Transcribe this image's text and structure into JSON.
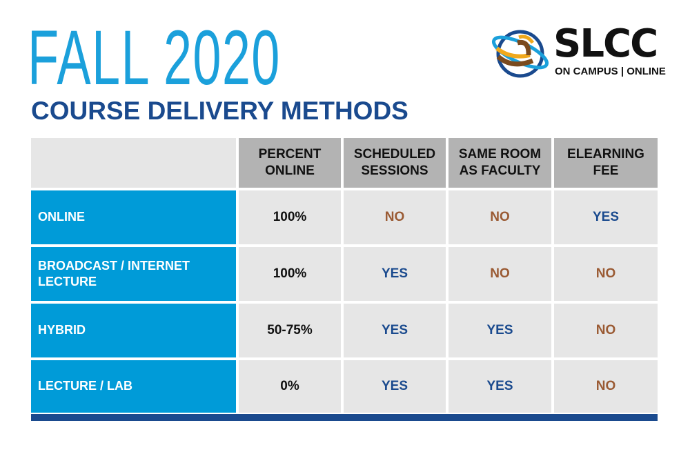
{
  "title": "FALL 2020",
  "subtitle": "COURSE DELIVERY METHODS",
  "logo": {
    "word": "SLCC",
    "tagline": "ON CAMPUS | ONLINE"
  },
  "colors": {
    "title": "#1ba0db",
    "subtitle": "#1a4a8e",
    "row_label_bg": "#009bd8",
    "yes": "#1a4a8e",
    "no": "#9a5a33",
    "header_bg": "#b3b3b3",
    "cell_bg": "#e6e6e6"
  },
  "table": {
    "headers": [
      "PERCENT ONLINE",
      "SCHEDULED SESSIONS",
      "SAME ROOM AS FACULTY",
      "ELEARNING FEE"
    ],
    "rows": [
      {
        "label": "ONLINE",
        "cells": [
          "100%",
          "NO",
          "NO",
          "YES"
        ]
      },
      {
        "label": "BROADCAST / INTERNET LECTURE",
        "cells": [
          "100%",
          "YES",
          "NO",
          "NO"
        ]
      },
      {
        "label": "HYBRID",
        "cells": [
          "50-75%",
          "YES",
          "YES",
          "NO"
        ]
      },
      {
        "label": "LECTURE / LAB",
        "cells": [
          "0%",
          "YES",
          "YES",
          "NO"
        ]
      }
    ]
  }
}
